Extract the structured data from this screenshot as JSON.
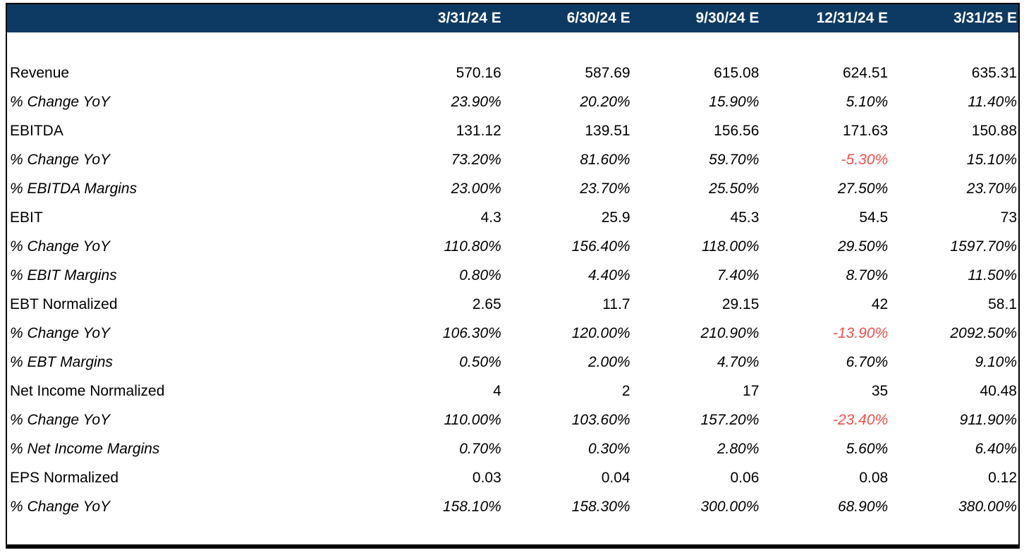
{
  "table": {
    "colors": {
      "header_bg": "#0d3a63",
      "header_text": "#ffffff",
      "body_text": "#000000",
      "negative_value": "#ef4f4b",
      "frame_border": "#000000"
    },
    "columns": [
      "",
      "3/31/24 E",
      "6/30/24 E",
      "9/30/24 E",
      "12/31/24 E",
      "3/31/25 E"
    ],
    "rows": [
      {
        "label": "Revenue",
        "style": "normal",
        "values": [
          "570.16",
          "587.69",
          "615.08",
          "624.51",
          "635.31"
        ]
      },
      {
        "label": "% Change YoY",
        "style": "italic",
        "values": [
          "23.90%",
          "20.20%",
          "15.90%",
          "5.10%",
          "11.40%"
        ]
      },
      {
        "label": "EBITDA",
        "style": "normal",
        "values": [
          "131.12",
          "139.51",
          "156.56",
          "171.63",
          "150.88"
        ]
      },
      {
        "label": "% Change YoY",
        "style": "italic",
        "values": [
          "73.20%",
          "81.60%",
          "59.70%",
          "-5.30%",
          "15.10%"
        ]
      },
      {
        "label": "% EBITDA Margins",
        "style": "italic",
        "values": [
          "23.00%",
          "23.70%",
          "25.50%",
          "27.50%",
          "23.70%"
        ]
      },
      {
        "label": "EBIT",
        "style": "normal",
        "values": [
          "4.3",
          "25.9",
          "45.3",
          "54.5",
          "73"
        ]
      },
      {
        "label": "% Change YoY",
        "style": "italic",
        "values": [
          "110.80%",
          "156.40%",
          "118.00%",
          "29.50%",
          "1597.70%"
        ]
      },
      {
        "label": "% EBIT Margins",
        "style": "italic",
        "values": [
          "0.80%",
          "4.40%",
          "7.40%",
          "8.70%",
          "11.50%"
        ]
      },
      {
        "label": "EBT Normalized",
        "style": "normal",
        "values": [
          "2.65",
          "11.7",
          "29.15",
          "42",
          "58.1"
        ]
      },
      {
        "label": "% Change YoY",
        "style": "italic",
        "values": [
          "106.30%",
          "120.00%",
          "210.90%",
          "-13.90%",
          "2092.50%"
        ]
      },
      {
        "label": "% EBT Margins",
        "style": "italic",
        "values": [
          "0.50%",
          "2.00%",
          "4.70%",
          "6.70%",
          "9.10%"
        ]
      },
      {
        "label": "Net Income Normalized",
        "style": "normal",
        "values": [
          "4",
          "2",
          "17",
          "35",
          "40.48"
        ]
      },
      {
        "label": "% Change YoY",
        "style": "italic",
        "values": [
          "110.00%",
          "103.60%",
          "157.20%",
          "-23.40%",
          "911.90%"
        ]
      },
      {
        "label": "% Net Income Margins",
        "style": "italic",
        "values": [
          "0.70%",
          "0.30%",
          "2.80%",
          "5.60%",
          "6.40%"
        ]
      },
      {
        "label": "EPS Normalized",
        "style": "normal",
        "values": [
          "0.03",
          "0.04",
          "0.06",
          "0.08",
          "0.12"
        ]
      },
      {
        "label": "% Change YoY",
        "style": "italic",
        "values": [
          "158.10%",
          "158.30%",
          "300.00%",
          "68.90%",
          "380.00%"
        ]
      }
    ]
  }
}
